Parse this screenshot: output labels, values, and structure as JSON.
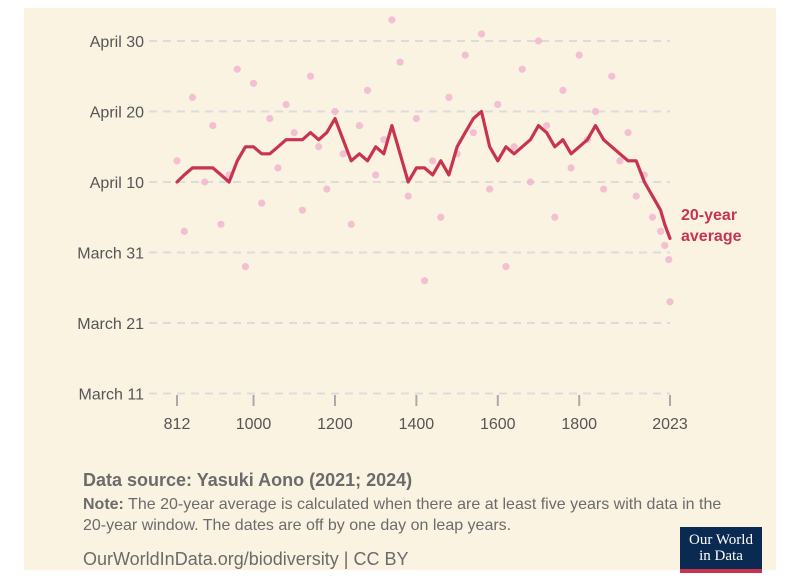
{
  "chart_data": {
    "type": "scatter",
    "title": "",
    "xlabel": "",
    "ylabel": "",
    "x_ticks": [
      "812",
      "1000",
      "1200",
      "1400",
      "1600",
      "1800",
      "2023"
    ],
    "x_range": [
      812,
      2023
    ],
    "y_ticks": [
      "April 30",
      "April 20",
      "April 10",
      "March 31",
      "March 21",
      "March 11"
    ],
    "y_tick_dates": [
      "April 30",
      "April 20",
      "April 10",
      "March 31",
      "March 21",
      "March 11"
    ],
    "y_range": [
      "March 11",
      "May 4"
    ],
    "grid": true,
    "series": [
      {
        "name": "",
        "kind": "annual-points",
        "color": "#f0b2cf",
        "points": [
          [
            812,
            "April 13"
          ],
          [
            830,
            "April 3"
          ],
          [
            850,
            "April 22"
          ],
          [
            880,
            "April 10"
          ],
          [
            900,
            "April 18"
          ],
          [
            920,
            "April 4"
          ],
          [
            940,
            "April 11"
          ],
          [
            960,
            "April 26"
          ],
          [
            980,
            "March 29"
          ],
          [
            1000,
            "April 24"
          ],
          [
            1020,
            "April 7"
          ],
          [
            1040,
            "April 19"
          ],
          [
            1060,
            "April 12"
          ],
          [
            1080,
            "April 21"
          ],
          [
            1100,
            "April 17"
          ],
          [
            1120,
            "April 6"
          ],
          [
            1140,
            "April 25"
          ],
          [
            1160,
            "April 15"
          ],
          [
            1180,
            "April 9"
          ],
          [
            1200,
            "April 20"
          ],
          [
            1220,
            "April 14"
          ],
          [
            1240,
            "April 4"
          ],
          [
            1260,
            "April 18"
          ],
          [
            1280,
            "April 23"
          ],
          [
            1300,
            "April 11"
          ],
          [
            1320,
            "April 16"
          ],
          [
            1340,
            "May 3"
          ],
          [
            1360,
            "April 27"
          ],
          [
            1380,
            "April 8"
          ],
          [
            1400,
            "April 19"
          ],
          [
            1420,
            "March 27"
          ],
          [
            1440,
            "April 13"
          ],
          [
            1460,
            "April 5"
          ],
          [
            1480,
            "April 22"
          ],
          [
            1500,
            "April 14"
          ],
          [
            1520,
            "April 28"
          ],
          [
            1540,
            "April 17"
          ],
          [
            1560,
            "May 1"
          ],
          [
            1580,
            "April 9"
          ],
          [
            1600,
            "April 21"
          ],
          [
            1620,
            "March 29"
          ],
          [
            1640,
            "April 15"
          ],
          [
            1660,
            "April 26"
          ],
          [
            1680,
            "April 10"
          ],
          [
            1700,
            "April 30"
          ],
          [
            1720,
            "April 18"
          ],
          [
            1740,
            "April 5"
          ],
          [
            1760,
            "April 23"
          ],
          [
            1780,
            "April 12"
          ],
          [
            1800,
            "April 28"
          ],
          [
            1820,
            "April 16"
          ],
          [
            1840,
            "April 20"
          ],
          [
            1860,
            "April 9"
          ],
          [
            1880,
            "April 25"
          ],
          [
            1900,
            "April 13"
          ],
          [
            1920,
            "April 17"
          ],
          [
            1940,
            "April 8"
          ],
          [
            1960,
            "April 11"
          ],
          [
            1980,
            "April 5"
          ],
          [
            2000,
            "April 3"
          ],
          [
            2010,
            "April 1"
          ],
          [
            2020,
            "March 30"
          ],
          [
            2023,
            "March 24"
          ]
        ]
      },
      {
        "name": "20-year average",
        "kind": "rolling-average",
        "color": "#c8344f",
        "points": [
          [
            812,
            "April 10"
          ],
          [
            830,
            "April 11"
          ],
          [
            850,
            "April 12"
          ],
          [
            880,
            "April 12"
          ],
          [
            900,
            "April 12"
          ],
          [
            920,
            "April 11"
          ],
          [
            940,
            "April 10"
          ],
          [
            960,
            "April 13"
          ],
          [
            980,
            "April 15"
          ],
          [
            1000,
            "April 15"
          ],
          [
            1020,
            "April 14"
          ],
          [
            1040,
            "April 14"
          ],
          [
            1060,
            "April 15"
          ],
          [
            1080,
            "April 16"
          ],
          [
            1100,
            "April 16"
          ],
          [
            1120,
            "April 16"
          ],
          [
            1140,
            "April 17"
          ],
          [
            1160,
            "April 16"
          ],
          [
            1180,
            "April 17"
          ],
          [
            1200,
            "April 19"
          ],
          [
            1220,
            "April 16"
          ],
          [
            1240,
            "April 13"
          ],
          [
            1260,
            "April 14"
          ],
          [
            1280,
            "April 13"
          ],
          [
            1300,
            "April 15"
          ],
          [
            1320,
            "April 14"
          ],
          [
            1340,
            "April 18"
          ],
          [
            1360,
            "April 14"
          ],
          [
            1380,
            "April 10"
          ],
          [
            1400,
            "April 12"
          ],
          [
            1420,
            "April 12"
          ],
          [
            1440,
            "April 11"
          ],
          [
            1460,
            "April 13"
          ],
          [
            1480,
            "April 11"
          ],
          [
            1500,
            "April 15"
          ],
          [
            1520,
            "April 17"
          ],
          [
            1540,
            "April 19"
          ],
          [
            1560,
            "April 20"
          ],
          [
            1580,
            "April 15"
          ],
          [
            1600,
            "April 13"
          ],
          [
            1620,
            "April 15"
          ],
          [
            1640,
            "April 14"
          ],
          [
            1660,
            "April 15"
          ],
          [
            1680,
            "April 16"
          ],
          [
            1700,
            "April 18"
          ],
          [
            1720,
            "April 17"
          ],
          [
            1740,
            "April 15"
          ],
          [
            1760,
            "April 16"
          ],
          [
            1780,
            "April 14"
          ],
          [
            1800,
            "April 15"
          ],
          [
            1820,
            "April 16"
          ],
          [
            1840,
            "April 18"
          ],
          [
            1860,
            "April 16"
          ],
          [
            1880,
            "April 15"
          ],
          [
            1900,
            "April 14"
          ],
          [
            1920,
            "April 13"
          ],
          [
            1940,
            "April 13"
          ],
          [
            1960,
            "April 10"
          ],
          [
            1980,
            "April 8"
          ],
          [
            2000,
            "April 6"
          ],
          [
            2010,
            "April 4"
          ],
          [
            2023,
            "April 2"
          ]
        ]
      }
    ],
    "annotations": [
      "20-year",
      "average"
    ]
  },
  "source": {
    "label": "Data source: Yasuki Aono (2021; 2024)"
  },
  "note": {
    "label": "Note:",
    "text": "The 20-year average is calculated when there are at least five years with data in the 20-year window. The dates are off by one day on leap years."
  },
  "footer": {
    "text": "OurWorldInData.org/biodiversity | CC BY"
  },
  "logo": {
    "line1": "Our World",
    "line2": "in Data"
  },
  "colors": {
    "background": "#fbf3e2",
    "points": "#f0b2cf",
    "average": "#c8344f",
    "logo_bg": "#0b2a52"
  }
}
